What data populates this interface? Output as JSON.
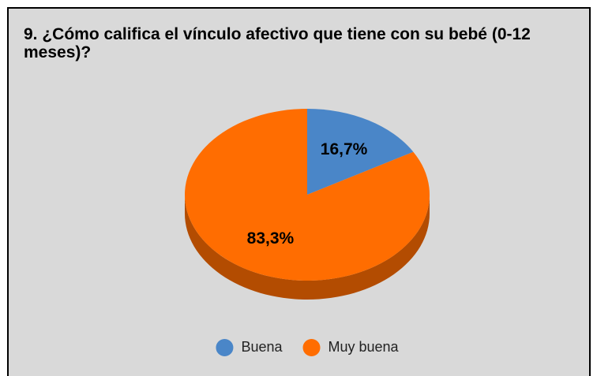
{
  "chart_data": {
    "type": "pie",
    "title": "9. ¿Cómo califica el vínculo afectivo que tiene con su bebé (0-12 meses)?",
    "categories": [
      "Buena",
      "Muy buena"
    ],
    "values": [
      16.7,
      83.3
    ],
    "value_labels": [
      "16,7%",
      "83,3%"
    ],
    "colors": [
      "#4a86c8",
      "#ff6d01"
    ],
    "legend": "bottom"
  }
}
